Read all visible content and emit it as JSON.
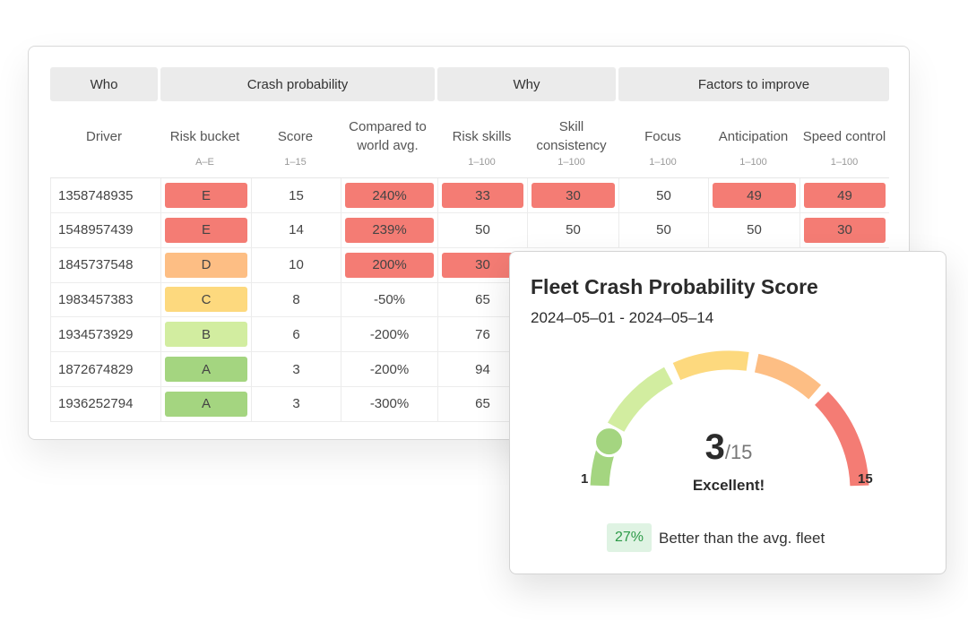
{
  "colors": {
    "red": "#f47c74",
    "orange": "#fdbe84",
    "yellow": "#fdd97e",
    "lightgreen": "#d2eda0",
    "green": "#a4d580"
  },
  "table": {
    "groups": [
      "Who",
      "Crash probability",
      "Why",
      "Factors to improve"
    ],
    "columns": [
      {
        "label": "Driver",
        "sub": ""
      },
      {
        "label": "Risk bucket",
        "sub": "A–E"
      },
      {
        "label": "Score",
        "sub": "1–15"
      },
      {
        "label": "Compared to world avg.",
        "sub": ""
      },
      {
        "label": "Risk skills",
        "sub": "1–100"
      },
      {
        "label": "Skill consistency",
        "sub": "1–100"
      },
      {
        "label": "Focus",
        "sub": "1–100"
      },
      {
        "label": "Anticipation",
        "sub": "1–100"
      },
      {
        "label": "Speed control",
        "sub": "1–100"
      }
    ],
    "rows": [
      {
        "driver": "1358748935",
        "bucket": "E",
        "score": "15",
        "compared": "240%",
        "risk_skills": "33",
        "skill_consistency": "30",
        "focus": "50",
        "anticipation": "49",
        "speed_control": "49"
      },
      {
        "driver": "1548957439",
        "bucket": "E",
        "score": "14",
        "compared": "239%",
        "risk_skills": "50",
        "skill_consistency": "50",
        "focus": "50",
        "anticipation": "50",
        "speed_control": "30"
      },
      {
        "driver": "1845737548",
        "bucket": "D",
        "score": "10",
        "compared": "200%",
        "risk_skills": "30"
      },
      {
        "driver": "1983457383",
        "bucket": "C",
        "score": "8",
        "compared": "-50%",
        "risk_skills": "65"
      },
      {
        "driver": "1934573929",
        "bucket": "B",
        "score": "6",
        "compared": "-200%",
        "risk_skills": "76"
      },
      {
        "driver": "1872674829",
        "bucket": "A",
        "score": "3",
        "compared": "-200%",
        "risk_skills": "94"
      },
      {
        "driver": "1936252794",
        "bucket": "A",
        "score": "3",
        "compared": "-300%",
        "risk_skills": "65"
      }
    ]
  },
  "fleet": {
    "title": "Fleet Crash Probability Score",
    "date_range": "2024–05–01 - 2024–05–14",
    "score": "3",
    "score_max": "/15",
    "label": "Excellent!",
    "gauge_min": "1",
    "gauge_max": "15",
    "gauge_value": 3,
    "gauge_range": [
      1,
      15
    ],
    "better_pct": "27%",
    "better_text": "Better than the avg. fleet"
  }
}
